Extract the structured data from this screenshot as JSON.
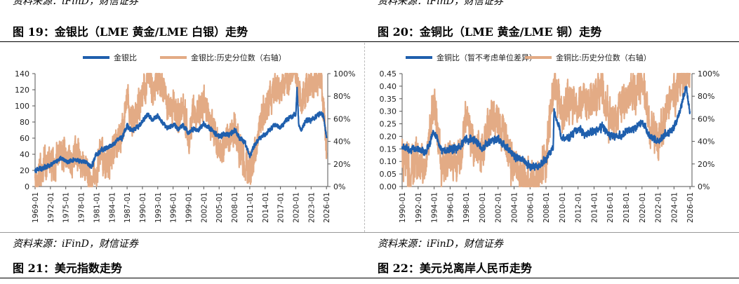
{
  "top_source_left": "资料来源：iFinD，财信证券",
  "top_source_right": "资料来源：iFinD，财信证券",
  "fig19_title": "图 19：金银比（LME 黄金/LME 白银）走势",
  "fig20_title": "图 20：金铜比（LME 黄金/LME 铜）走势",
  "bottom_source_left": "资料来源：iFinD，财信证券",
  "bottom_source_right": "资料来源：iFinD，财信证券",
  "fig21_title": "图 21：美元指数走势",
  "fig22_title": "图 22：美元兑离岸人民币走势",
  "colors": {
    "primary": "#1f5fad",
    "secondary": "#e3ab85"
  },
  "chart_data": [
    {
      "type": "line",
      "legend": [
        "金银比",
        "金银比:历史分位数（右轴）"
      ],
      "legend_position": "top",
      "x_ticks": [
        "1969-01",
        "1972-01",
        "1975-01",
        "1978-01",
        "1981-01",
        "1984-01",
        "1987-01",
        "1990-01",
        "1993-01",
        "1996-01",
        "1999-01",
        "2002-01",
        "2005-01",
        "2008-01",
        "2011-01",
        "2014-01",
        "2017-01",
        "2020-01",
        "2023-01",
        "2026-01"
      ],
      "y_ticks": [
        "0",
        "20",
        "40",
        "60",
        "80",
        "100",
        "120",
        "140"
      ],
      "y2_ticks": [
        "0%",
        "20%",
        "40%",
        "60%",
        "80%",
        "100%"
      ],
      "ylim": [
        0,
        140
      ],
      "y2lim": [
        0,
        100
      ],
      "grid": false,
      "series": [
        {
          "name": "金银比",
          "axis": "left",
          "x": [
            1969,
            1971,
            1973,
            1974,
            1975,
            1977,
            1979,
            1980,
            1981,
            1982,
            1983,
            1984,
            1985,
            1986,
            1987,
            1988,
            1989,
            1990,
            1991,
            1992,
            1993,
            1994,
            1995,
            1996,
            1997,
            1998,
            1999,
            2000,
            2001,
            2002,
            2003,
            2004,
            2005,
            2006,
            2007,
            2008,
            2009,
            2010,
            2011,
            2012,
            2013,
            2014,
            2015,
            2016,
            2017,
            2018,
            2019,
            2020,
            2020.25,
            2020.6,
            2021,
            2022,
            2023,
            2024,
            2025,
            2025.5,
            2026
          ],
          "values": [
            20,
            24,
            30,
            35,
            31,
            33,
            30,
            24,
            40,
            45,
            48,
            50,
            57,
            60,
            75,
            70,
            73,
            80,
            90,
            82,
            88,
            78,
            73,
            77,
            72,
            76,
            66,
            72,
            70,
            78,
            73,
            67,
            62,
            64,
            65,
            70,
            60,
            56,
            38,
            52,
            60,
            64,
            72,
            77,
            73,
            82,
            86,
            90,
            122,
            75,
            70,
            82,
            82,
            87,
            92,
            85,
            60
          ]
        },
        {
          "name": "金银比:历史分位数（右轴）",
          "axis": "right",
          "x": [
            1969,
            1970,
            1971,
            1972,
            1973,
            1974,
            1975,
            1976,
            1977,
            1978,
            1979,
            1980,
            1981,
            1982,
            1983,
            1984,
            1985,
            1986,
            1987,
            1988,
            1989,
            1990,
            1991,
            1992,
            1993,
            1994,
            1995,
            1996,
            1997,
            1998,
            1999,
            2000,
            2001,
            2002,
            2003,
            2004,
            2005,
            2006,
            2007,
            2008,
            2009,
            2010,
            2011,
            2012,
            2013,
            2014,
            2015,
            2016,
            2017,
            2018,
            2019,
            2020,
            2021,
            2022,
            2023,
            2024,
            2025,
            2026
          ],
          "values": [
            5,
            8,
            22,
            20,
            18,
            32,
            25,
            22,
            28,
            22,
            18,
            3,
            10,
            30,
            20,
            30,
            40,
            45,
            75,
            60,
            68,
            85,
            99,
            90,
            95,
            85,
            70,
            77,
            60,
            68,
            45,
            65,
            60,
            78,
            62,
            48,
            30,
            35,
            42,
            55,
            35,
            22,
            12,
            30,
            55,
            65,
            80,
            87,
            80,
            95,
            98,
            99,
            75,
            88,
            90,
            92,
            96,
            30
          ]
        }
      ]
    },
    {
      "type": "line",
      "legend": [
        "金铜比（暂不考虑单位差异）",
        "金铜比:历史分位数（右轴）"
      ],
      "legend_position": "top",
      "x_ticks": [
        "1990-01",
        "1992-01",
        "1994-01",
        "1996-01",
        "1998-01",
        "2000-01",
        "2002-01",
        "2004-01",
        "2006-01",
        "2008-01",
        "2010-01",
        "2012-01",
        "2014-01",
        "2016-01",
        "2018-01",
        "2020-01",
        "2022-01",
        "2024-01",
        "2026-01"
      ],
      "y_ticks": [
        "0.00",
        "0.05",
        "0.10",
        "0.15",
        "0.20",
        "0.25",
        "0.30",
        "0.35",
        "0.40",
        "0.45"
      ],
      "y2_ticks": [
        "0%",
        "20%",
        "40%",
        "60%",
        "80%",
        "100%"
      ],
      "ylim": [
        0,
        0.45
      ],
      "y2lim": [
        0,
        100
      ],
      "grid": false,
      "series": [
        {
          "name": "金铜比（暂不考虑单位差异）",
          "axis": "left",
          "x": [
            1990,
            1991,
            1992,
            1993,
            1994,
            1995,
            1996,
            1997,
            1998,
            1999,
            2000,
            2001,
            2002,
            2003,
            2004,
            2005,
            2006,
            2007,
            2008,
            2008.9,
            2009,
            2010,
            2011,
            2012,
            2013,
            2014,
            2015,
            2016,
            2017,
            2018,
            2019,
            2020,
            2021,
            2022,
            2023,
            2024,
            2025,
            2025.5,
            2026
          ],
          "values": [
            0.16,
            0.15,
            0.15,
            0.14,
            0.22,
            0.14,
            0.15,
            0.15,
            0.19,
            0.19,
            0.15,
            0.18,
            0.19,
            0.16,
            0.12,
            0.11,
            0.08,
            0.08,
            0.11,
            0.16,
            0.3,
            0.19,
            0.2,
            0.23,
            0.21,
            0.22,
            0.24,
            0.2,
            0.2,
            0.22,
            0.23,
            0.26,
            0.2,
            0.18,
            0.21,
            0.23,
            0.33,
            0.4,
            0.3
          ]
        },
        {
          "name": "金铜比:历史分位数（右轴）",
          "axis": "right",
          "x": [
            1990,
            1991,
            1992,
            1993,
            1994,
            1995,
            1996,
            1997,
            1998,
            1999,
            2000,
            2001,
            2002,
            2003,
            2004,
            2005,
            2006,
            2007,
            2008,
            2009,
            2010,
            2011,
            2012,
            2013,
            2014,
            2015,
            2016,
            2017,
            2018,
            2019,
            2020,
            2021,
            2022,
            2023,
            2024,
            2025,
            2026
          ],
          "values": [
            30,
            15,
            22,
            18,
            75,
            15,
            22,
            20,
            55,
            40,
            30,
            60,
            55,
            40,
            18,
            8,
            3,
            5,
            25,
            95,
            60,
            75,
            70,
            75,
            80,
            85,
            55,
            60,
            80,
            85,
            95,
            55,
            40,
            65,
            85,
            93,
            99
          ]
        }
      ]
    }
  ]
}
